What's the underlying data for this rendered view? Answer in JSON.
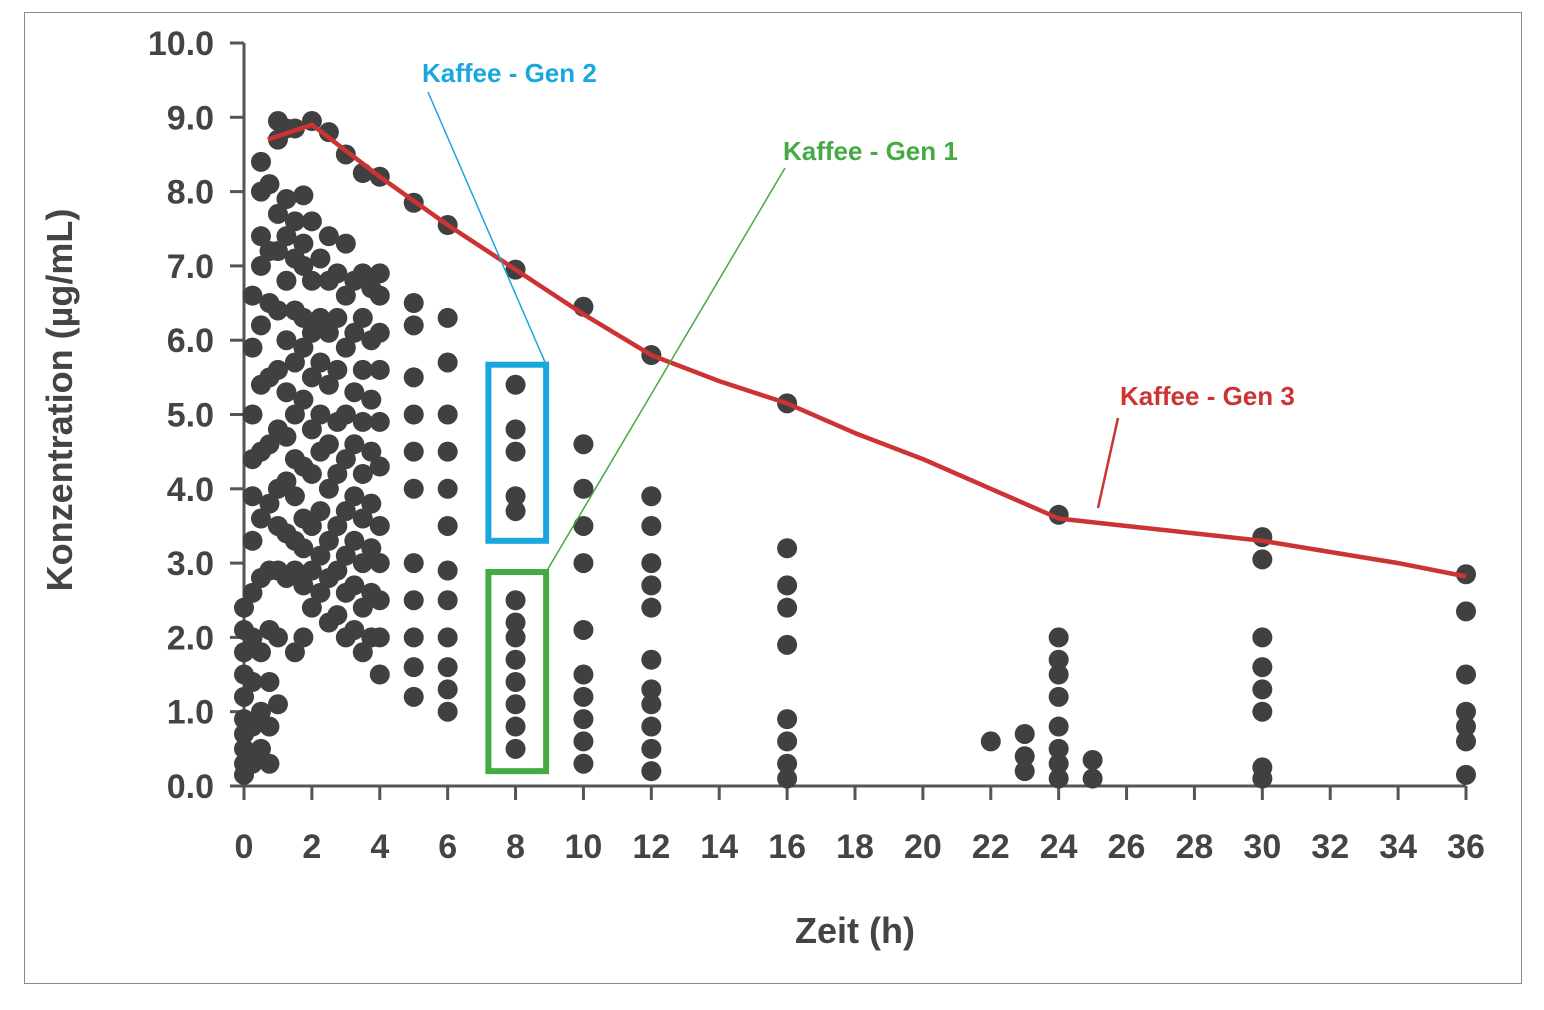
{
  "chart_data": {
    "type": "scatter",
    "xlabel": "Zeit (h)",
    "ylabel": "Konzentration (µg/mL)",
    "xlim": [
      0,
      36
    ],
    "ylim": [
      0,
      10
    ],
    "x_ticks": [
      0,
      2,
      4,
      6,
      8,
      10,
      12,
      14,
      16,
      18,
      20,
      22,
      24,
      26,
      28,
      30,
      32,
      34,
      36
    ],
    "y_ticks": [
      "0.0",
      "1.0",
      "2.0",
      "3.0",
      "4.0",
      "5.0",
      "6.0",
      "7.0",
      "8.0",
      "9.0",
      "10.0"
    ],
    "grid": false,
    "colors": {
      "points": "#404040",
      "gen3_line": "#cc3333",
      "gen2": "#1aa7e0",
      "gen1": "#44aa44",
      "axis": "#555555"
    },
    "series": [
      {
        "kind": "points",
        "points": [
          [
            0,
            0.15
          ],
          [
            0,
            0.3
          ],
          [
            0,
            0.5
          ],
          [
            0,
            0.7
          ],
          [
            0,
            0.9
          ],
          [
            0,
            1.2
          ],
          [
            0,
            1.5
          ],
          [
            0,
            1.8
          ],
          [
            0,
            2.1
          ],
          [
            0,
            2.4
          ],
          [
            0.25,
            0.3
          ],
          [
            0.25,
            0.8
          ],
          [
            0.25,
            1.4
          ],
          [
            0.25,
            2.0
          ],
          [
            0.25,
            2.6
          ],
          [
            0.25,
            3.3
          ],
          [
            0.25,
            3.9
          ],
          [
            0.25,
            4.4
          ],
          [
            0.25,
            5.0
          ],
          [
            0.25,
            5.9
          ],
          [
            0.25,
            6.6
          ],
          [
            0.5,
            0.5
          ],
          [
            0.5,
            1.0
          ],
          [
            0.5,
            1.8
          ],
          [
            0.5,
            2.8
          ],
          [
            0.5,
            3.6
          ],
          [
            0.5,
            4.5
          ],
          [
            0.5,
            5.4
          ],
          [
            0.5,
            6.2
          ],
          [
            0.5,
            7.0
          ],
          [
            0.5,
            7.4
          ],
          [
            0.5,
            8.0
          ],
          [
            0.5,
            8.4
          ],
          [
            0.75,
            0.3
          ],
          [
            0.75,
            0.8
          ],
          [
            0.75,
            1.4
          ],
          [
            0.75,
            2.1
          ],
          [
            0.75,
            2.9
          ],
          [
            0.75,
            3.8
          ],
          [
            0.75,
            4.6
          ],
          [
            0.75,
            5.5
          ],
          [
            0.75,
            6.5
          ],
          [
            0.75,
            7.2
          ],
          [
            0.75,
            8.1
          ],
          [
            1,
            1.1
          ],
          [
            1,
            2.0
          ],
          [
            1,
            2.9
          ],
          [
            1,
            3.5
          ],
          [
            1,
            4.0
          ],
          [
            1,
            4.8
          ],
          [
            1,
            5.6
          ],
          [
            1,
            6.4
          ],
          [
            1,
            7.2
          ],
          [
            1,
            7.7
          ],
          [
            1,
            8.7
          ],
          [
            1,
            8.95
          ],
          [
            1.25,
            2.8
          ],
          [
            1.25,
            3.4
          ],
          [
            1.25,
            4.1
          ],
          [
            1.25,
            4.7
          ],
          [
            1.25,
            5.3
          ],
          [
            1.25,
            6.0
          ],
          [
            1.25,
            6.8
          ],
          [
            1.25,
            7.4
          ],
          [
            1.25,
            7.9
          ],
          [
            1.25,
            8.85
          ],
          [
            1.5,
            1.8
          ],
          [
            1.5,
            2.9
          ],
          [
            1.5,
            3.3
          ],
          [
            1.5,
            3.9
          ],
          [
            1.5,
            4.4
          ],
          [
            1.5,
            5.0
          ],
          [
            1.5,
            5.7
          ],
          [
            1.5,
            6.4
          ],
          [
            1.5,
            7.1
          ],
          [
            1.5,
            7.6
          ],
          [
            1.5,
            8.85
          ],
          [
            1.75,
            2.0
          ],
          [
            1.75,
            2.7
          ],
          [
            1.75,
            3.2
          ],
          [
            1.75,
            3.6
          ],
          [
            1.75,
            4.3
          ],
          [
            1.75,
            5.2
          ],
          [
            1.75,
            5.9
          ],
          [
            1.75,
            6.3
          ],
          [
            1.75,
            7.0
          ],
          [
            1.75,
            7.3
          ],
          [
            1.75,
            7.95
          ],
          [
            2,
            2.4
          ],
          [
            2,
            2.9
          ],
          [
            2,
            3.5
          ],
          [
            2,
            4.2
          ],
          [
            2,
            4.8
          ],
          [
            2,
            5.5
          ],
          [
            2,
            6.1
          ],
          [
            2,
            6.8
          ],
          [
            2,
            7.6
          ],
          [
            2,
            8.95
          ],
          [
            2.25,
            2.6
          ],
          [
            2.25,
            3.1
          ],
          [
            2.25,
            3.7
          ],
          [
            2.25,
            4.5
          ],
          [
            2.25,
            5.0
          ],
          [
            2.25,
            5.7
          ],
          [
            2.25,
            6.3
          ],
          [
            2.25,
            7.1
          ],
          [
            2.5,
            2.2
          ],
          [
            2.5,
            2.8
          ],
          [
            2.5,
            3.3
          ],
          [
            2.5,
            4.0
          ],
          [
            2.5,
            4.6
          ],
          [
            2.5,
            5.4
          ],
          [
            2.5,
            6.1
          ],
          [
            2.5,
            6.8
          ],
          [
            2.5,
            7.4
          ],
          [
            2.5,
            8.8
          ],
          [
            2.75,
            2.3
          ],
          [
            2.75,
            2.9
          ],
          [
            2.75,
            3.5
          ],
          [
            2.75,
            4.2
          ],
          [
            2.75,
            4.9
          ],
          [
            2.75,
            5.6
          ],
          [
            2.75,
            6.3
          ],
          [
            2.75,
            6.9
          ],
          [
            3,
            2.0
          ],
          [
            3,
            2.6
          ],
          [
            3,
            3.1
          ],
          [
            3,
            3.7
          ],
          [
            3,
            4.4
          ],
          [
            3,
            5.0
          ],
          [
            3,
            5.9
          ],
          [
            3,
            6.6
          ],
          [
            3,
            7.3
          ],
          [
            3,
            8.5
          ],
          [
            3.25,
            2.1
          ],
          [
            3.25,
            2.7
          ],
          [
            3.25,
            3.3
          ],
          [
            3.25,
            3.9
          ],
          [
            3.25,
            4.6
          ],
          [
            3.25,
            5.3
          ],
          [
            3.25,
            6.1
          ],
          [
            3.25,
            6.8
          ],
          [
            3.5,
            1.8
          ],
          [
            3.5,
            2.4
          ],
          [
            3.5,
            3.0
          ],
          [
            3.5,
            3.6
          ],
          [
            3.5,
            4.2
          ],
          [
            3.5,
            4.9
          ],
          [
            3.5,
            5.6
          ],
          [
            3.5,
            6.3
          ],
          [
            3.5,
            6.9
          ],
          [
            3.5,
            8.25
          ],
          [
            3.75,
            2.0
          ],
          [
            3.75,
            2.6
          ],
          [
            3.75,
            3.2
          ],
          [
            3.75,
            3.8
          ],
          [
            3.75,
            4.5
          ],
          [
            3.75,
            5.2
          ],
          [
            3.75,
            6.0
          ],
          [
            3.75,
            6.7
          ],
          [
            4,
            1.5
          ],
          [
            4,
            2.0
          ],
          [
            4,
            2.5
          ],
          [
            4,
            3.0
          ],
          [
            4,
            3.5
          ],
          [
            4,
            4.3
          ],
          [
            4,
            4.9
          ],
          [
            4,
            5.6
          ],
          [
            4,
            6.1
          ],
          [
            4,
            6.6
          ],
          [
            4,
            6.9
          ],
          [
            4,
            8.2
          ],
          [
            5,
            1.2
          ],
          [
            5,
            1.6
          ],
          [
            5,
            2.0
          ],
          [
            5,
            2.5
          ],
          [
            5,
            3.0
          ],
          [
            5,
            4.0
          ],
          [
            5,
            4.5
          ],
          [
            5,
            5.0
          ],
          [
            5,
            5.5
          ],
          [
            5,
            6.2
          ],
          [
            5,
            6.5
          ],
          [
            5,
            7.85
          ],
          [
            6,
            1.0
          ],
          [
            6,
            1.3
          ],
          [
            6,
            1.6
          ],
          [
            6,
            2.0
          ],
          [
            6,
            2.5
          ],
          [
            6,
            2.9
          ],
          [
            6,
            3.5
          ],
          [
            6,
            4.0
          ],
          [
            6,
            4.5
          ],
          [
            6,
            5.0
          ],
          [
            6,
            5.7
          ],
          [
            6,
            6.3
          ],
          [
            6,
            7.55
          ],
          [
            8,
            0.5
          ],
          [
            8,
            0.8
          ],
          [
            8,
            1.1
          ],
          [
            8,
            1.4
          ],
          [
            8,
            1.7
          ],
          [
            8,
            2.0
          ],
          [
            8,
            2.2
          ],
          [
            8,
            2.5
          ],
          [
            8,
            3.7
          ],
          [
            8,
            3.9
          ],
          [
            8,
            4.5
          ],
          [
            8,
            4.8
          ],
          [
            8,
            5.4
          ],
          [
            8,
            6.95
          ],
          [
            10,
            0.3
          ],
          [
            10,
            0.6
          ],
          [
            10,
            0.9
          ],
          [
            10,
            1.2
          ],
          [
            10,
            1.5
          ],
          [
            10,
            2.1
          ],
          [
            10,
            3.0
          ],
          [
            10,
            3.5
          ],
          [
            10,
            4.0
          ],
          [
            10,
            4.6
          ],
          [
            10,
            6.45
          ],
          [
            12,
            0.2
          ],
          [
            12,
            0.5
          ],
          [
            12,
            0.8
          ],
          [
            12,
            1.1
          ],
          [
            12,
            1.3
          ],
          [
            12,
            1.7
          ],
          [
            12,
            2.4
          ],
          [
            12,
            2.7
          ],
          [
            12,
            3.0
          ],
          [
            12,
            3.5
          ],
          [
            12,
            3.9
          ],
          [
            12,
            5.8
          ],
          [
            16,
            0.1
          ],
          [
            16,
            0.3
          ],
          [
            16,
            0.6
          ],
          [
            16,
            0.9
          ],
          [
            16,
            1.9
          ],
          [
            16,
            2.4
          ],
          [
            16,
            2.7
          ],
          [
            16,
            3.2
          ],
          [
            16,
            5.15
          ],
          [
            22,
            0.6
          ],
          [
            23,
            0.2
          ],
          [
            23,
            0.4
          ],
          [
            23,
            0.7
          ],
          [
            24,
            0.1
          ],
          [
            24,
            0.3
          ],
          [
            24,
            0.5
          ],
          [
            24,
            0.8
          ],
          [
            24,
            1.2
          ],
          [
            24,
            1.5
          ],
          [
            24,
            1.7
          ],
          [
            24,
            2.0
          ],
          [
            24,
            3.65
          ],
          [
            25,
            0.1
          ],
          [
            25,
            0.35
          ],
          [
            30,
            0.1
          ],
          [
            30,
            0.25
          ],
          [
            30,
            1.0
          ],
          [
            30,
            1.3
          ],
          [
            30,
            1.6
          ],
          [
            30,
            2.0
          ],
          [
            30,
            3.05
          ],
          [
            30,
            3.35
          ],
          [
            36,
            0.15
          ],
          [
            36,
            0.6
          ],
          [
            36,
            0.8
          ],
          [
            36,
            1.0
          ],
          [
            36,
            1.5
          ],
          [
            36,
            2.35
          ],
          [
            36,
            2.85
          ]
        ]
      },
      {
        "kind": "line",
        "x": [
          0.7,
          2,
          4,
          6,
          8,
          10,
          12,
          14,
          16,
          18,
          20,
          22,
          24,
          26,
          28,
          30,
          32,
          34,
          36
        ],
        "y": [
          8.7,
          8.9,
          8.2,
          7.55,
          6.95,
          6.35,
          5.8,
          5.45,
          5.15,
          4.75,
          4.4,
          4.0,
          3.6,
          3.5,
          3.4,
          3.3,
          3.15,
          3.0,
          2.82
        ]
      }
    ],
    "annotations": [
      {
        "text": "Kaffee - Gen 2"
      },
      {
        "text": "Kaffee - Gen 1"
      },
      {
        "text": "Kaffee - Gen 3"
      }
    ]
  }
}
